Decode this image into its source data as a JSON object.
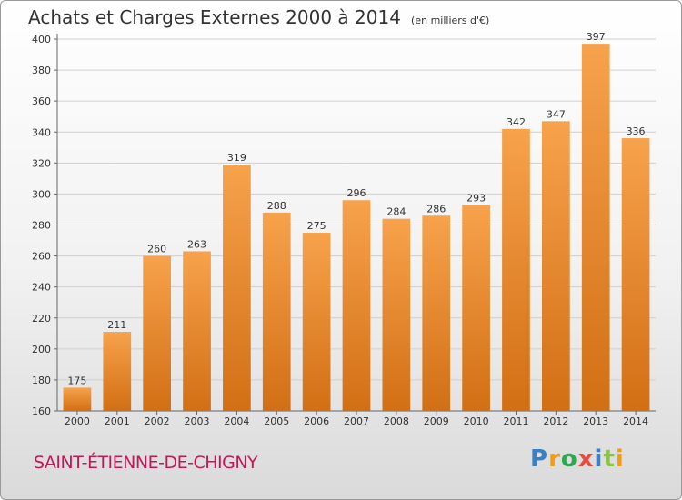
{
  "title": "Achats et Charges Externes 2000 à 2014",
  "subtitle": "(en milliers d'€)",
  "commune": "SAINT-ÉTIENNE-DE-CHIGNY",
  "logo": {
    "letters": [
      "P",
      "r",
      "o",
      "x",
      "i",
      "t",
      "i"
    ],
    "colors": [
      "#3b7fc4",
      "#f39c12",
      "#2ea84f",
      "#e74c3c",
      "#3b7fc4",
      "#8bc34a",
      "#f39c12"
    ]
  },
  "chart_data": {
    "type": "bar",
    "title": "Achats et Charges Externes 2000 à 2014",
    "subtitle": "(en milliers d'€)",
    "categories": [
      "2000",
      "2001",
      "2002",
      "2003",
      "2004",
      "2005",
      "2006",
      "2007",
      "2008",
      "2009",
      "2010",
      "2011",
      "2012",
      "2013",
      "2014"
    ],
    "values": [
      175,
      211,
      260,
      263,
      319,
      288,
      275,
      296,
      284,
      286,
      293,
      342,
      347,
      397,
      336
    ],
    "ylim": [
      160,
      400
    ],
    "yticks": [
      160,
      180,
      200,
      220,
      240,
      260,
      280,
      300,
      320,
      340,
      360,
      380,
      400
    ],
    "grid": true,
    "bar_color": "#f0a04a"
  }
}
